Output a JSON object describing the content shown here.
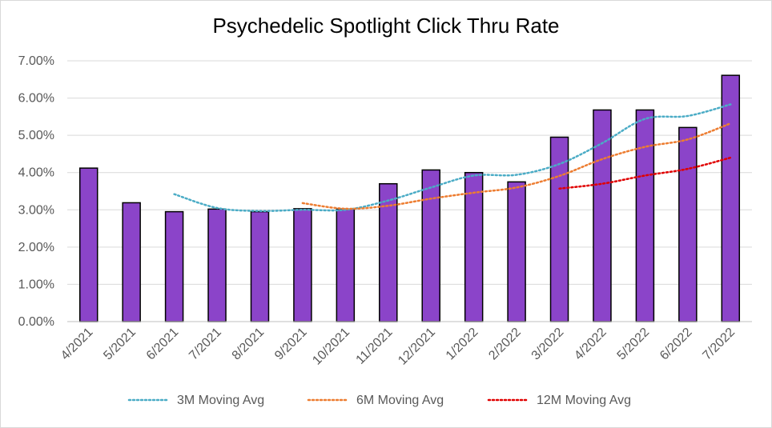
{
  "chart_data": {
    "type": "bar",
    "title": "Psychedelic Spotlight Click Thru Rate",
    "categories": [
      "4/2021",
      "5/2021",
      "6/2021",
      "7/2021",
      "8/2021",
      "9/2021",
      "10/2021",
      "11/2021",
      "12/2021",
      "1/2022",
      "2/2022",
      "3/2022",
      "4/2022",
      "5/2022",
      "6/2022",
      "7/2022"
    ],
    "values": [
      0.0412,
      0.0319,
      0.0295,
      0.0302,
      0.0295,
      0.0303,
      0.0302,
      0.037,
      0.0407,
      0.04,
      0.0375,
      0.0495,
      0.0568,
      0.0568,
      0.0521,
      0.0661
    ],
    "bar_color": "#8b44c9",
    "bar_border": "#000000",
    "ylim": [
      0,
      0.07
    ],
    "yticks": [
      0,
      0.01,
      0.02,
      0.03,
      0.04,
      0.05,
      0.06,
      0.07
    ],
    "ytick_labels": [
      "0.00%",
      "1.00%",
      "2.00%",
      "3.00%",
      "4.00%",
      "5.00%",
      "6.00%",
      "7.00%"
    ],
    "grid": true,
    "legend_position": "bottom",
    "series": [
      {
        "name": "3M Moving Avg",
        "color": "#4bacc6",
        "values": [
          null,
          null,
          0.0342,
          0.0305,
          0.0297,
          0.03,
          0.03,
          0.0325,
          0.036,
          0.0392,
          0.0394,
          0.0423,
          0.0479,
          0.0544,
          0.0552,
          0.0583
        ]
      },
      {
        "name": "6M Moving Avg",
        "color": "#ed7d31",
        "values": [
          null,
          null,
          null,
          null,
          null,
          0.0318,
          0.0303,
          0.0311,
          0.033,
          0.0346,
          0.036,
          0.0391,
          0.0436,
          0.0469,
          0.0489,
          0.0532
        ]
      },
      {
        "name": "12M Moving Avg",
        "color": "#e00000",
        "values": [
          null,
          null,
          null,
          null,
          null,
          null,
          null,
          null,
          null,
          null,
          null,
          0.0357,
          0.037,
          0.0392,
          0.041,
          0.044
        ]
      }
    ]
  }
}
